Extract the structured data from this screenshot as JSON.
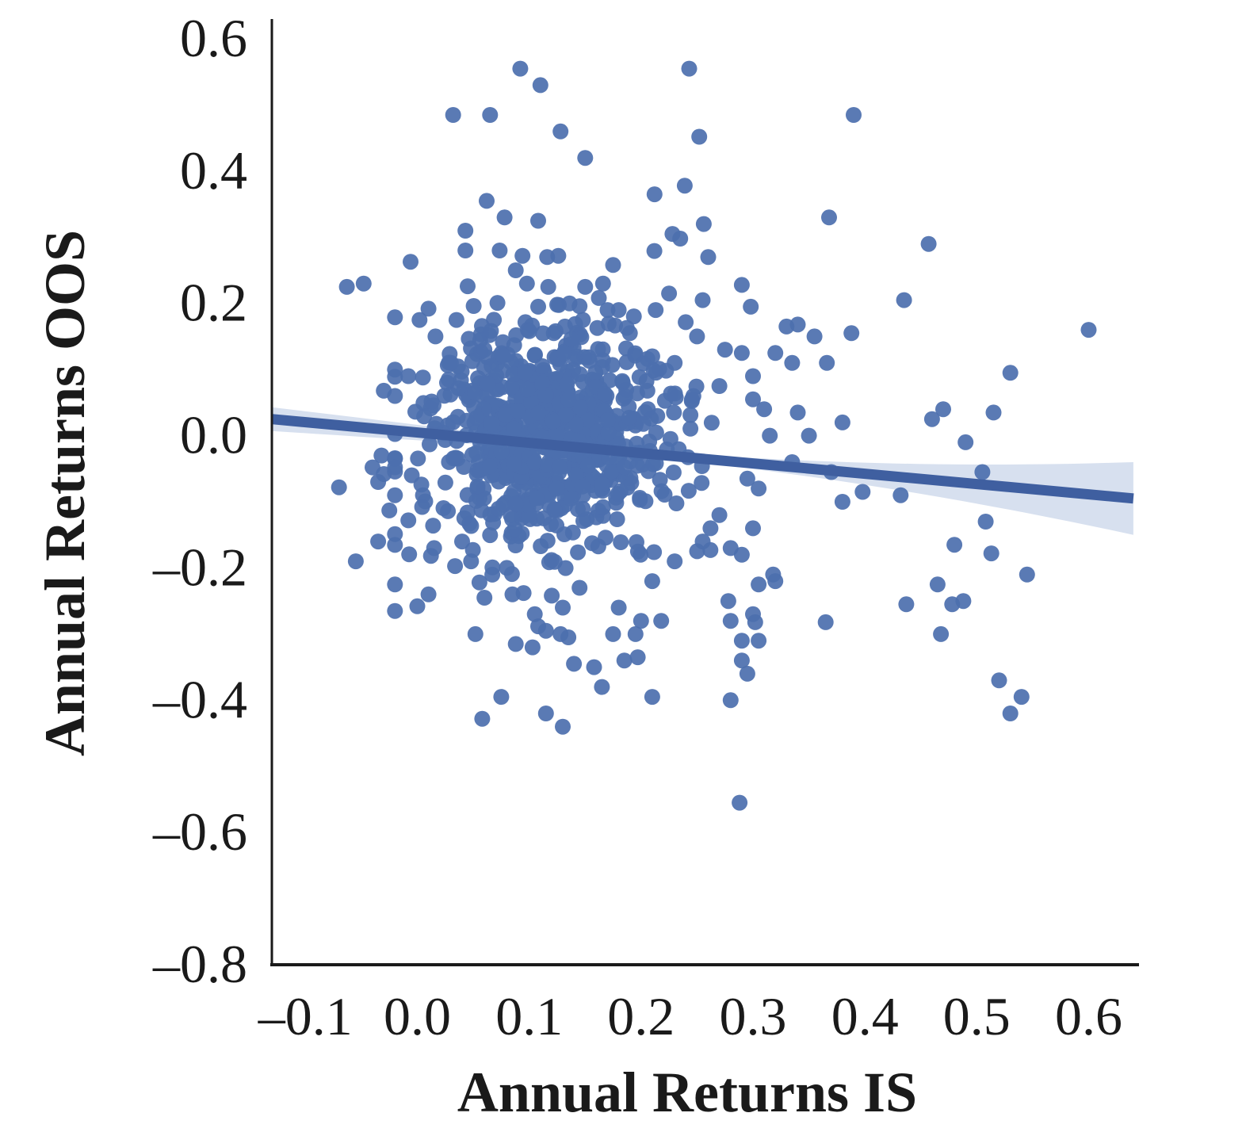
{
  "chart_data": {
    "type": "scatter",
    "title": "",
    "xlabel": "Annual Returns IS",
    "ylabel": "Annual Returns OOS",
    "xlim": [
      -0.13,
      0.645
    ],
    "ylim": [
      -0.8,
      0.63
    ],
    "x_ticks": [
      -0.1,
      0.0,
      0.1,
      0.2,
      0.3,
      0.4,
      0.5,
      0.6
    ],
    "y_ticks": [
      -0.8,
      -0.6,
      -0.4,
      -0.2,
      0.0,
      0.2,
      0.4,
      0.6
    ],
    "x_tick_labels": [
      "–0.1",
      "0.0",
      "0.1",
      "0.2",
      "0.3",
      "0.4",
      "0.5",
      "0.6"
    ],
    "y_tick_labels": [
      "–0.8",
      "–0.6",
      "–0.4",
      "–0.2",
      "0.0",
      "0.2",
      "0.4",
      "0.6"
    ],
    "grid": false,
    "marker_color": "#4c6fae",
    "regression": {
      "type": "linear",
      "x_start": -0.13,
      "y_start": 0.025,
      "x_end": 0.64,
      "y_end": -0.095,
      "ci_half_width_left": 0.018,
      "ci_half_width_mid": 0.004,
      "ci_half_width_right": 0.055,
      "color": "#3f5fa0",
      "band_color": "#c9d5ea"
    },
    "points": [
      {
        "x": 0.092,
        "y": 0.555
      },
      {
        "x": 0.11,
        "y": 0.53
      },
      {
        "x": 0.243,
        "y": 0.555
      },
      {
        "x": 0.032,
        "y": 0.485
      },
      {
        "x": 0.065,
        "y": 0.485
      },
      {
        "x": 0.39,
        "y": 0.485
      },
      {
        "x": 0.128,
        "y": 0.46
      },
      {
        "x": 0.252,
        "y": 0.452
      },
      {
        "x": 0.15,
        "y": 0.42
      },
      {
        "x": 0.062,
        "y": 0.355
      },
      {
        "x": 0.078,
        "y": 0.33
      },
      {
        "x": 0.108,
        "y": 0.325
      },
      {
        "x": 0.043,
        "y": 0.31
      },
      {
        "x": 0.212,
        "y": 0.365
      },
      {
        "x": 0.239,
        "y": 0.378
      },
      {
        "x": 0.256,
        "y": 0.32
      },
      {
        "x": 0.228,
        "y": 0.305
      },
      {
        "x": 0.235,
        "y": 0.298
      },
      {
        "x": 0.368,
        "y": 0.33
      },
      {
        "x": 0.457,
        "y": 0.29
      },
      {
        "x": 0.043,
        "y": 0.28
      },
      {
        "x": 0.26,
        "y": 0.27
      },
      {
        "x": -0.006,
        "y": 0.263
      },
      {
        "x": -0.063,
        "y": 0.225
      },
      {
        "x": -0.048,
        "y": 0.23
      },
      {
        "x": 0.094,
        "y": 0.272
      },
      {
        "x": 0.116,
        "y": 0.27
      },
      {
        "x": 0.126,
        "y": 0.272
      },
      {
        "x": 0.175,
        "y": 0.258
      },
      {
        "x": 0.088,
        "y": 0.25
      },
      {
        "x": 0.098,
        "y": 0.23
      },
      {
        "x": 0.117,
        "y": 0.225
      },
      {
        "x": 0.15,
        "y": 0.225
      },
      {
        "x": 0.166,
        "y": 0.23
      },
      {
        "x": 0.255,
        "y": 0.205
      },
      {
        "x": 0.225,
        "y": 0.215
      },
      {
        "x": 0.29,
        "y": 0.228
      },
      {
        "x": 0.298,
        "y": 0.195
      },
      {
        "x": 0.435,
        "y": 0.205
      },
      {
        "x": 0.01,
        "y": 0.192
      },
      {
        "x": 0.002,
        "y": 0.175
      },
      {
        "x": 0.035,
        "y": 0.175
      },
      {
        "x": 0.108,
        "y": 0.195
      },
      {
        "x": 0.125,
        "y": 0.198
      },
      {
        "x": 0.136,
        "y": 0.2
      },
      {
        "x": 0.17,
        "y": 0.19
      },
      {
        "x": 0.18,
        "y": 0.19
      },
      {
        "x": 0.213,
        "y": 0.19
      },
      {
        "x": 0.148,
        "y": 0.175
      },
      {
        "x": 0.1,
        "y": 0.158
      },
      {
        "x": 0.122,
        "y": 0.155
      },
      {
        "x": 0.132,
        "y": 0.165
      },
      {
        "x": 0.19,
        "y": 0.155
      },
      {
        "x": 0.25,
        "y": 0.15
      },
      {
        "x": 0.33,
        "y": 0.165
      },
      {
        "x": 0.34,
        "y": 0.168
      },
      {
        "x": 0.355,
        "y": 0.15
      },
      {
        "x": 0.388,
        "y": 0.155
      },
      {
        "x": 0.6,
        "y": 0.16
      },
      {
        "x": 0.275,
        "y": 0.13
      },
      {
        "x": 0.32,
        "y": 0.125
      },
      {
        "x": 0.335,
        "y": 0.11
      },
      {
        "x": 0.366,
        "y": 0.11
      },
      {
        "x": 0.03,
        "y": 0.11
      },
      {
        "x": 0.06,
        "y": 0.13
      },
      {
        "x": 0.21,
        "y": 0.12
      },
      {
        "x": 0.23,
        "y": 0.11
      },
      {
        "x": 0.29,
        "y": 0.125
      },
      {
        "x": 0.3,
        "y": 0.09
      },
      {
        "x": 0.53,
        "y": 0.095
      },
      {
        "x": -0.02,
        "y": 0.1
      },
      {
        "x": -0.008,
        "y": 0.09
      },
      {
        "x": 0.005,
        "y": 0.088
      },
      {
        "x": 0.028,
        "y": 0.085
      },
      {
        "x": -0.02,
        "y": 0.06
      },
      {
        "x": -0.03,
        "y": 0.068
      },
      {
        "x": 0.27,
        "y": 0.075
      },
      {
        "x": 0.3,
        "y": 0.055
      },
      {
        "x": 0.31,
        "y": 0.04
      },
      {
        "x": 0.34,
        "y": 0.035
      },
      {
        "x": 0.47,
        "y": 0.04
      },
      {
        "x": 0.46,
        "y": 0.025
      },
      {
        "x": 0.515,
        "y": 0.035
      },
      {
        "x": 0.38,
        "y": 0.02
      },
      {
        "x": 0.49,
        "y": -0.01
      },
      {
        "x": 0.505,
        "y": -0.055
      },
      {
        "x": -0.032,
        "y": -0.03
      },
      {
        "x": -0.04,
        "y": -0.048
      },
      {
        "x": -0.03,
        "y": -0.058
      },
      {
        "x": -0.07,
        "y": -0.078
      },
      {
        "x": -0.035,
        "y": -0.07
      },
      {
        "x": -0.02,
        "y": -0.09
      },
      {
        "x": -0.025,
        "y": -0.113
      },
      {
        "x": -0.005,
        "y": -0.06
      },
      {
        "x": 0.005,
        "y": -0.09
      },
      {
        "x": -0.008,
        "y": -0.128
      },
      {
        "x": -0.035,
        "y": -0.16
      },
      {
        "x": -0.055,
        "y": -0.19
      },
      {
        "x": 0.015,
        "y": -0.17
      },
      {
        "x": 0.04,
        "y": -0.16
      },
      {
        "x": 0.048,
        "y": -0.19
      },
      {
        "x": -0.02,
        "y": -0.225
      },
      {
        "x": 0.01,
        "y": -0.24
      },
      {
        "x": -0.02,
        "y": -0.265
      },
      {
        "x": 0.0,
        "y": -0.258
      },
      {
        "x": 0.06,
        "y": -0.245
      },
      {
        "x": 0.08,
        "y": -0.2
      },
      {
        "x": 0.085,
        "y": -0.24
      },
      {
        "x": 0.095,
        "y": -0.238
      },
      {
        "x": 0.105,
        "y": -0.27
      },
      {
        "x": 0.088,
        "y": -0.315
      },
      {
        "x": 0.103,
        "y": -0.32
      },
      {
        "x": 0.115,
        "y": -0.295
      },
      {
        "x": 0.128,
        "y": -0.3
      },
      {
        "x": 0.135,
        "y": -0.305
      },
      {
        "x": 0.13,
        "y": -0.26
      },
      {
        "x": 0.145,
        "y": -0.23
      },
      {
        "x": 0.14,
        "y": -0.345
      },
      {
        "x": 0.158,
        "y": -0.35
      },
      {
        "x": 0.175,
        "y": -0.3
      },
      {
        "x": 0.185,
        "y": -0.34
      },
      {
        "x": 0.195,
        "y": -0.3
      },
      {
        "x": 0.197,
        "y": -0.335
      },
      {
        "x": 0.165,
        "y": -0.38
      },
      {
        "x": 0.21,
        "y": -0.395
      },
      {
        "x": 0.075,
        "y": -0.395
      },
      {
        "x": 0.058,
        "y": -0.428
      },
      {
        "x": 0.115,
        "y": -0.42
      },
      {
        "x": 0.13,
        "y": -0.44
      },
      {
        "x": 0.18,
        "y": -0.26
      },
      {
        "x": 0.2,
        "y": -0.28
      },
      {
        "x": 0.218,
        "y": -0.28
      },
      {
        "x": 0.21,
        "y": -0.22
      },
      {
        "x": 0.23,
        "y": -0.19
      },
      {
        "x": 0.255,
        "y": -0.16
      },
      {
        "x": 0.262,
        "y": -0.14
      },
      {
        "x": 0.27,
        "y": -0.12
      },
      {
        "x": 0.28,
        "y": -0.17
      },
      {
        "x": 0.29,
        "y": -0.18
      },
      {
        "x": 0.3,
        "y": -0.14
      },
      {
        "x": 0.305,
        "y": -0.225
      },
      {
        "x": 0.318,
        "y": -0.21
      },
      {
        "x": 0.32,
        "y": -0.22
      },
      {
        "x": 0.278,
        "y": -0.25
      },
      {
        "x": 0.28,
        "y": -0.28
      },
      {
        "x": 0.3,
        "y": -0.27
      },
      {
        "x": 0.302,
        "y": -0.282
      },
      {
        "x": 0.29,
        "y": -0.31
      },
      {
        "x": 0.305,
        "y": -0.31
      },
      {
        "x": 0.29,
        "y": -0.34
      },
      {
        "x": 0.295,
        "y": -0.36
      },
      {
        "x": 0.28,
        "y": -0.4
      },
      {
        "x": 0.288,
        "y": -0.555
      },
      {
        "x": 0.365,
        "y": -0.282
      },
      {
        "x": 0.437,
        "y": -0.255
      },
      {
        "x": 0.465,
        "y": -0.225
      },
      {
        "x": 0.468,
        "y": -0.3
      },
      {
        "x": 0.478,
        "y": -0.255
      },
      {
        "x": 0.488,
        "y": -0.25
      },
      {
        "x": 0.48,
        "y": -0.165
      },
      {
        "x": 0.508,
        "y": -0.13
      },
      {
        "x": 0.513,
        "y": -0.178
      },
      {
        "x": 0.545,
        "y": -0.21
      },
      {
        "x": 0.52,
        "y": -0.37
      },
      {
        "x": 0.53,
        "y": -0.42
      },
      {
        "x": 0.54,
        "y": -0.395
      },
      {
        "x": 0.38,
        "y": -0.1
      },
      {
        "x": 0.398,
        "y": -0.085
      },
      {
        "x": 0.432,
        "y": -0.09
      },
      {
        "x": 0.305,
        "y": -0.08
      },
      {
        "x": 0.295,
        "y": -0.065
      },
      {
        "x": 0.335,
        "y": -0.04
      },
      {
        "x": 0.37,
        "y": -0.055
      },
      {
        "x": 0.35,
        "y": 0.0
      },
      {
        "x": 0.315,
        "y": 0.0
      }
    ],
    "cluster": {
      "x_center": 0.12,
      "y_center": 0.0,
      "x_sd": 0.055,
      "y_sd": 0.085,
      "count": 750,
      "seed": 7
    }
  }
}
